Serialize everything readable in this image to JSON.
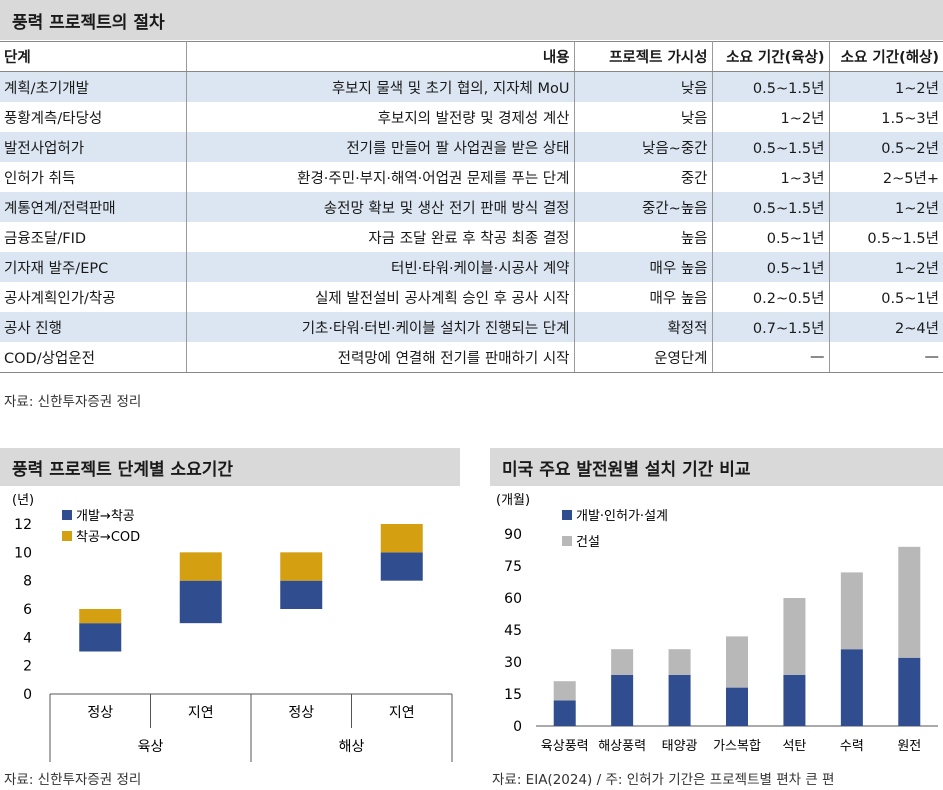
{
  "table_title": "풍력 프로젝트의 절차",
  "table_source": "자료: 신한투자증권 정리",
  "chart_data": [
    {
      "type": "table",
      "columns": [
        "단계",
        "내용",
        "프로젝트 가시성",
        "소요 기간(육상)",
        "소요 기간(해상)"
      ],
      "rows": [
        [
          "계획/초기개발",
          "후보지 물색 및 초기 협의, 지자체 MoU",
          "낮음",
          "0.5~1.5년",
          "1~2년"
        ],
        [
          "풍황계측/타당성",
          "후보지의 발전량 및 경제성 계산",
          "낮음",
          "1~2년",
          "1.5~3년"
        ],
        [
          "발전사업허가",
          "전기를 만들어 팔 사업권을 받은 상태",
          "낮음~중간",
          "0.5~1.5년",
          "0.5~2년"
        ],
        [
          "인허가 취득",
          "환경·주민·부지·해역·어업권 문제를 푸는 단계",
          "중간",
          "1~3년",
          "2~5년+"
        ],
        [
          "계통연계/전력판매",
          "송전망 확보 및 생산 전기 판매 방식 결정",
          "중간~높음",
          "0.5~1.5년",
          "1~2년"
        ],
        [
          "금융조달/FID",
          "자금 조달 완료 후 착공 최종 결정",
          "높음",
          "0.5~1년",
          "0.5~1.5년"
        ],
        [
          "기자재 발주/EPC",
          "터빈·타워·케이블·시공사 계약",
          "매우 높음",
          "0.5~1년",
          "1~2년"
        ],
        [
          "공사계획인가/착공",
          "실제 발전설비 공사계획 승인 후 공사 시작",
          "매우 높음",
          "0.2~0.5년",
          "0.5~1년"
        ],
        [
          "공사 진행",
          "기초·타워·터빈·케이블 설치가 진행되는 단계",
          "확정적",
          "0.7~1.5년",
          "2~4년"
        ],
        [
          "COD/상업운전",
          "전력망에 연결해 전기를 판매하기 시작",
          "운영단계",
          "—",
          "—"
        ]
      ]
    },
    {
      "type": "bar",
      "title": "풍력 프로젝트 단계별 소요기간",
      "ylabel": "(년)",
      "ylim": [
        0,
        12
      ],
      "yticks": [
        0,
        2,
        4,
        6,
        8,
        10,
        12
      ],
      "categories": [
        "정상",
        "지연",
        "정상",
        "지연"
      ],
      "groups": [
        {
          "label": "육상",
          "span": 2
        },
        {
          "label": "해상",
          "span": 2
        }
      ],
      "base": [
        3,
        5,
        6,
        8
      ],
      "series": [
        {
          "name": "개발→착공",
          "color": "#2f4d8f",
          "values": [
            2,
            3,
            2,
            2
          ]
        },
        {
          "name": "착공→COD",
          "color": "#d4a012",
          "values": [
            1,
            2,
            2,
            2
          ]
        }
      ],
      "legend": "top-left",
      "source": "자료: 신한투자증권 정리"
    },
    {
      "type": "bar",
      "title": "미국 주요 발전원별 설치 기간 비교",
      "ylabel": "(개월)",
      "ylim": [
        0,
        90
      ],
      "yticks": [
        0,
        15,
        30,
        45,
        60,
        75,
        90
      ],
      "categories": [
        "육상풍력",
        "해상풍력",
        "태양광",
        "가스복합",
        "석탄",
        "수력",
        "원전"
      ],
      "series": [
        {
          "name": "개발·인허가·설계",
          "color": "#2f4d8f",
          "values": [
            12,
            24,
            24,
            18,
            24,
            36,
            32
          ]
        },
        {
          "name": "건설",
          "color": "#b8b8b8",
          "values": [
            9,
            12,
            12,
            24,
            36,
            36,
            52
          ]
        }
      ],
      "legend": "top-left",
      "source": "자료: EIA(2024) / 주: 인허가 기간은 프로젝트별 편차 큰 편"
    }
  ]
}
